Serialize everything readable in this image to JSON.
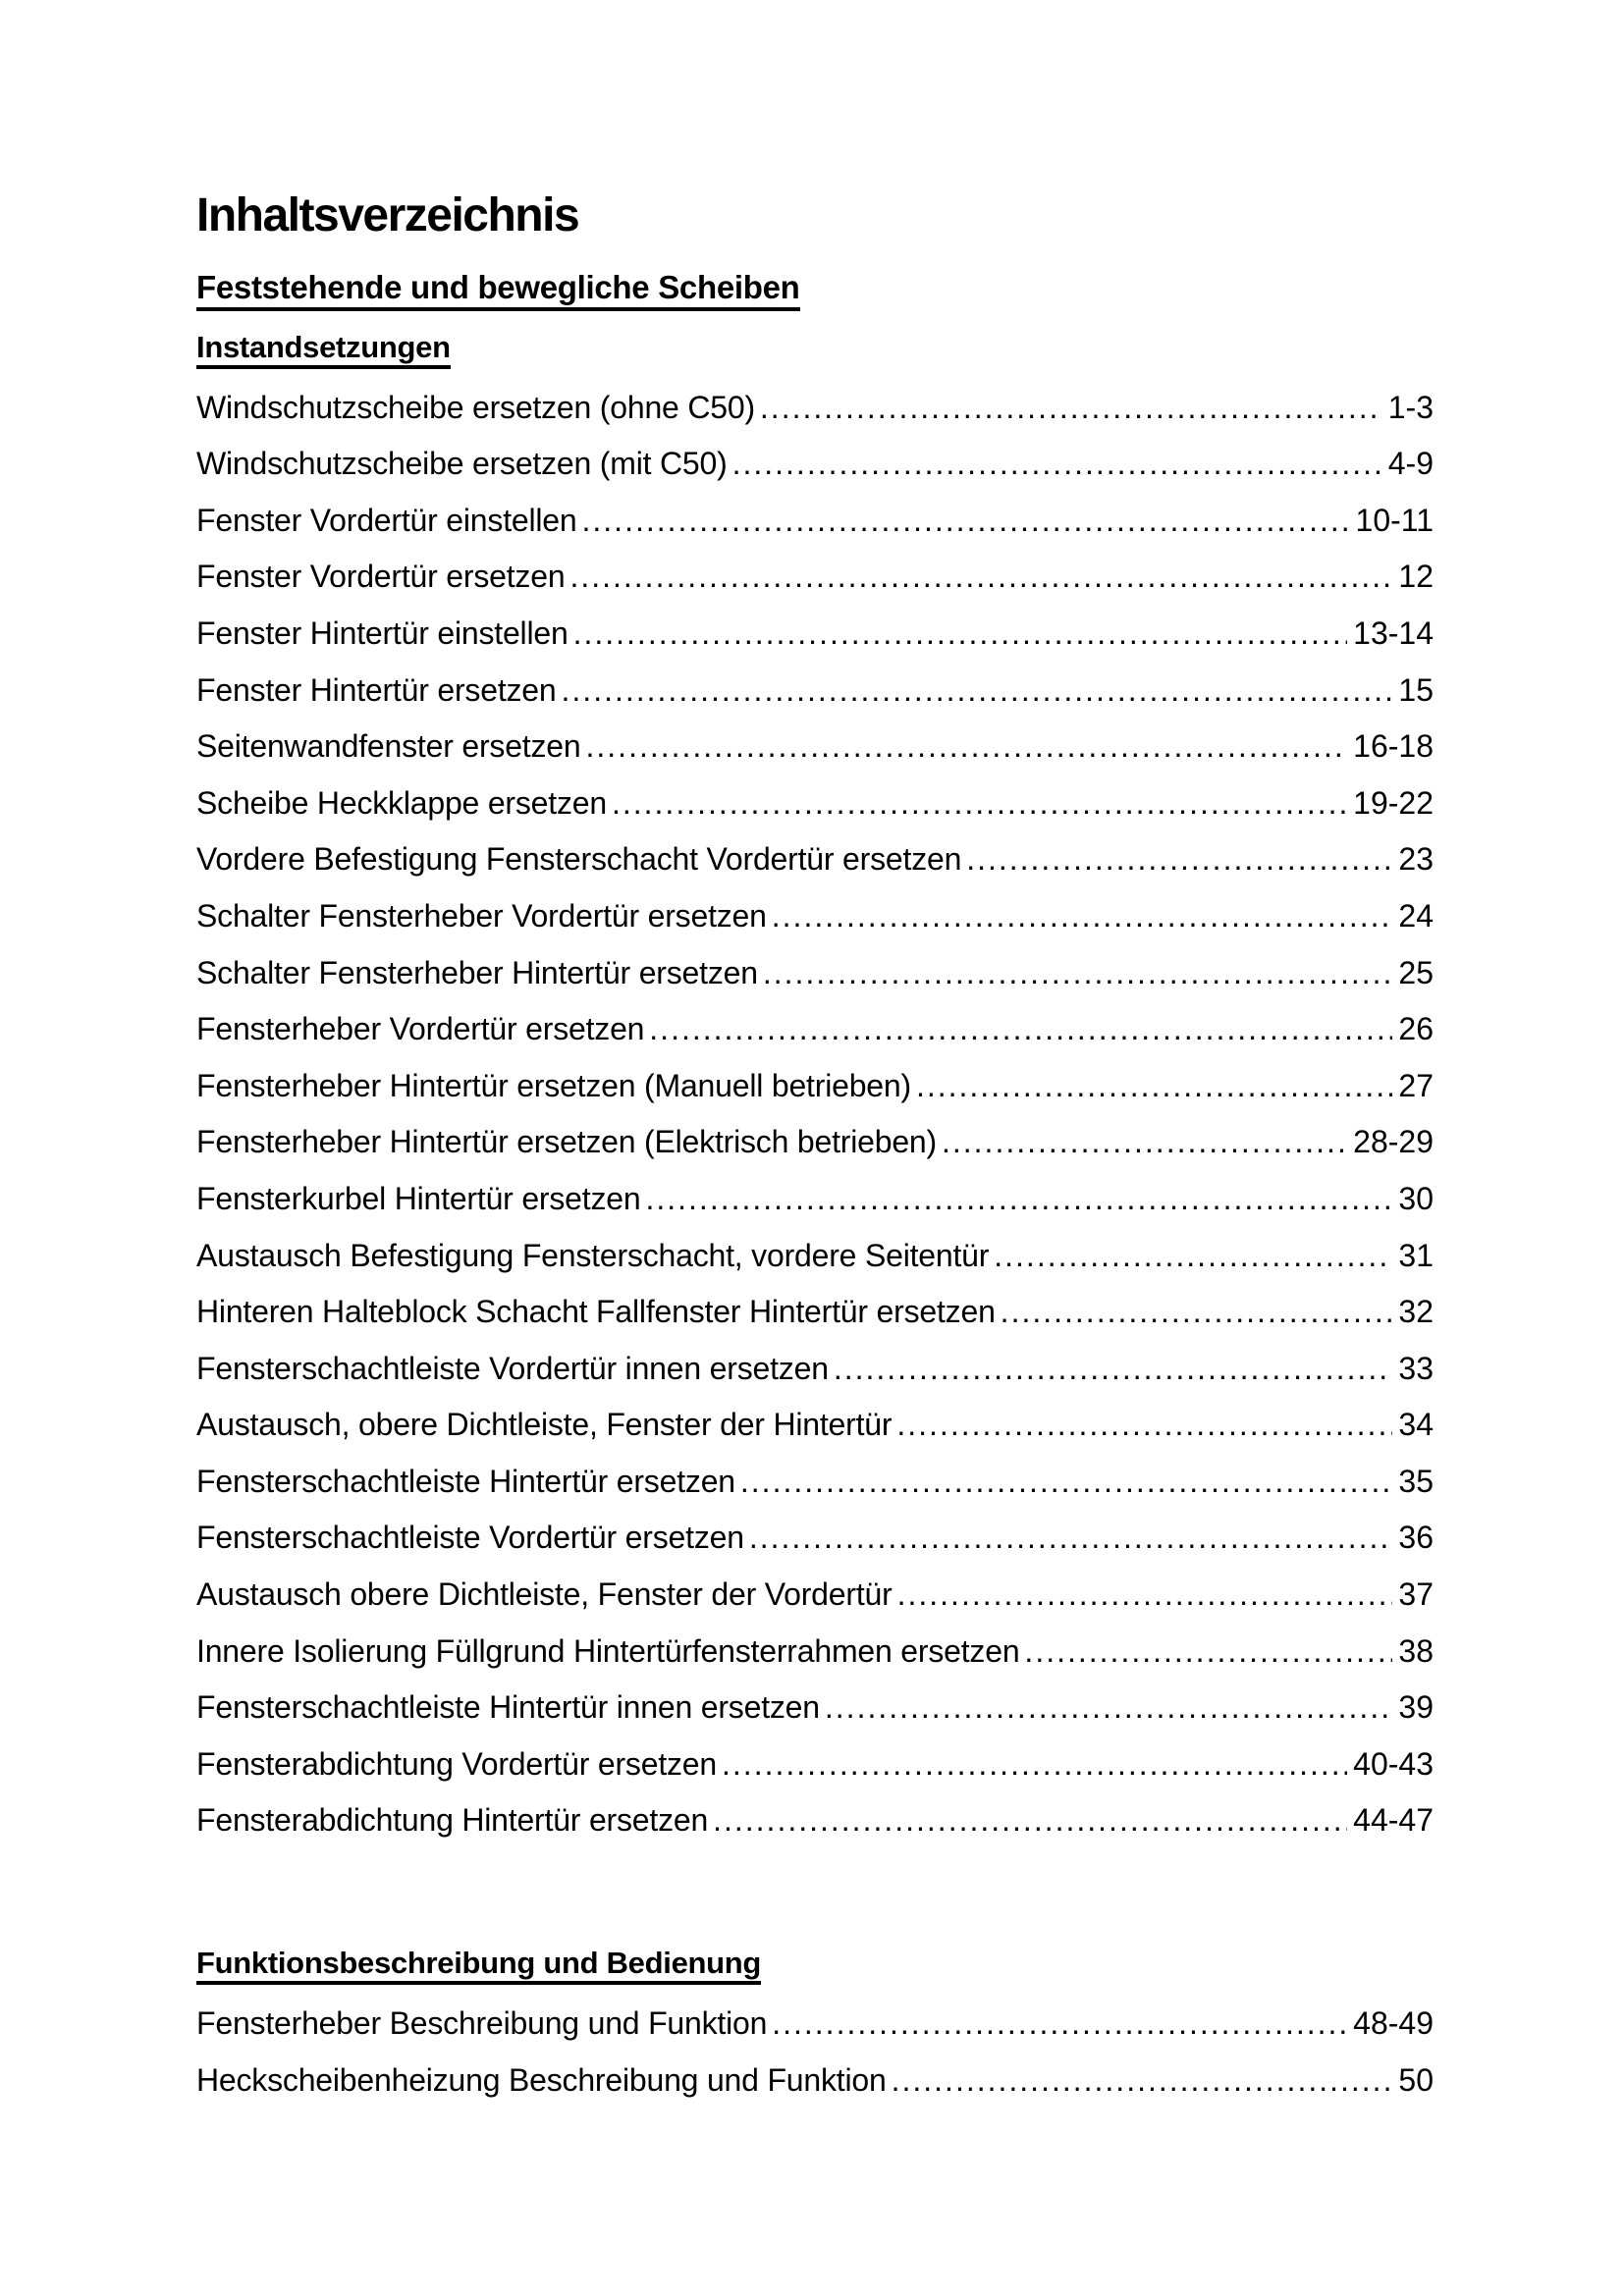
{
  "document": {
    "title": "Inhaltsverzeichnis",
    "chapter_heading": "Feststehende und bewegliche Scheiben"
  },
  "colors": {
    "text": "#000000",
    "background": "#ffffff"
  },
  "sections": [
    {
      "heading": "Instandsetzungen",
      "entries": [
        {
          "label": "Windschutzscheibe ersetzen (ohne C50)",
          "pages": "1-3"
        },
        {
          "label": "Windschutzscheibe ersetzen (mit C50)",
          "pages": "4-9"
        },
        {
          "label": "Fenster Vordertür einstellen",
          "pages": "10-11"
        },
        {
          "label": "Fenster Vordertür ersetzen",
          "pages": "12"
        },
        {
          "label": "Fenster Hintertür einstellen",
          "pages": "13-14"
        },
        {
          "label": "Fenster Hintertür ersetzen",
          "pages": "15"
        },
        {
          "label": "Seitenwandfenster ersetzen",
          "pages": "16-18"
        },
        {
          "label": "Scheibe Heckklappe ersetzen",
          "pages": "19-22"
        },
        {
          "label": "Vordere Befestigung Fensterschacht Vordertür ersetzen",
          "pages": "23"
        },
        {
          "label": "Schalter Fensterheber Vordertür ersetzen",
          "pages": "24"
        },
        {
          "label": "Schalter Fensterheber Hintertür ersetzen",
          "pages": "25"
        },
        {
          "label": "Fensterheber Vordertür ersetzen",
          "pages": "26"
        },
        {
          "label": "Fensterheber Hintertür ersetzen (Manuell betrieben)",
          "pages": "27"
        },
        {
          "label": "Fensterheber Hintertür ersetzen (Elektrisch betrieben)",
          "pages": "28-29"
        },
        {
          "label": "Fensterkurbel Hintertür ersetzen",
          "pages": "30"
        },
        {
          "label": "Austausch Befestigung Fensterschacht, vordere Seitentür",
          "pages": "31"
        },
        {
          "label": "Hinteren Halteblock Schacht Fallfenster Hintertür ersetzen",
          "pages": "32"
        },
        {
          "label": "Fensterschachtleiste Vordertür innen ersetzen",
          "pages": "33"
        },
        {
          "label": "Austausch, obere Dichtleiste, Fenster der Hintertür",
          "pages": "34"
        },
        {
          "label": "Fensterschachtleiste Hintertür ersetzen",
          "pages": "35"
        },
        {
          "label": "Fensterschachtleiste Vordertür ersetzen",
          "pages": "36"
        },
        {
          "label": "Austausch obere Dichtleiste, Fenster der Vordertür",
          "pages": "37"
        },
        {
          "label": "Innere Isolierung Füllgrund Hintertürfensterrahmen ersetzen",
          "pages": "38"
        },
        {
          "label": "Fensterschachtleiste Hintertür innen ersetzen",
          "pages": "39"
        },
        {
          "label": "Fensterabdichtung Vordertür ersetzen",
          "pages": "40-43"
        },
        {
          "label": "Fensterabdichtung Hintertür ersetzen",
          "pages": "44-47"
        }
      ]
    },
    {
      "heading": "Funktionsbeschreibung und Bedienung",
      "entries": [
        {
          "label": "Fensterheber Beschreibung und Funktion",
          "pages": "48-49"
        },
        {
          "label": "Heckscheibenheizung Beschreibung und Funktion",
          "pages": "50"
        }
      ]
    }
  ]
}
